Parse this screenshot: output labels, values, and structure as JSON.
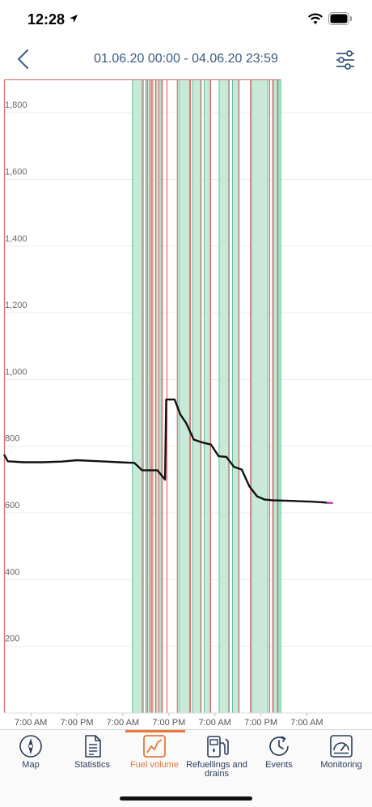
{
  "status_bar": {
    "time": "12:28"
  },
  "header": {
    "title": "01.06.20 00:00 - 04.06.20 23:59"
  },
  "chart_data": {
    "type": "line",
    "title": "",
    "xlabel": "",
    "ylabel": "",
    "ylim": [
      0,
      1900
    ],
    "y_ticks": [
      200,
      400,
      600,
      800,
      1000,
      1200,
      1400,
      1600,
      1800
    ],
    "y_tick_labels": [
      "200",
      "400",
      "600",
      "800",
      "1,000",
      "1,200",
      "1,400",
      "1,600",
      "1,800"
    ],
    "x_tick_labels": [
      "7:00 AM",
      "7:00 PM",
      "7:00 AM",
      "7:00 PM",
      "7:00 AM",
      "7:00 PM",
      "7:00 AM"
    ],
    "x_tick_hours": [
      7,
      19,
      31,
      43,
      55,
      67,
      79
    ],
    "xlim_hours": [
      0,
      96
    ],
    "series": [
      {
        "points": [
          [
            0,
            775
          ],
          [
            1,
            755
          ],
          [
            5,
            752
          ],
          [
            10,
            752
          ],
          [
            15,
            754
          ],
          [
            19,
            758
          ],
          [
            25,
            755
          ],
          [
            30,
            752
          ],
          [
            34,
            750
          ],
          [
            36,
            728
          ],
          [
            40,
            728
          ],
          [
            42,
            700
          ],
          [
            42.3,
            940
          ],
          [
            44.5,
            940
          ],
          [
            46,
            895
          ],
          [
            47.5,
            870
          ],
          [
            49.5,
            820
          ],
          [
            51.5,
            812
          ],
          [
            54,
            805
          ],
          [
            56,
            770
          ],
          [
            58,
            768
          ],
          [
            60,
            738
          ],
          [
            62,
            730
          ],
          [
            64,
            680
          ],
          [
            66,
            650
          ],
          [
            68,
            640
          ],
          [
            70,
            638
          ],
          [
            75,
            636
          ],
          [
            80,
            634
          ],
          [
            83,
            632
          ],
          [
            85,
            630
          ]
        ]
      }
    ],
    "shaded_intervals_hours": [
      [
        33.5,
        36
      ],
      [
        37,
        38.5
      ],
      [
        39.5,
        41
      ],
      [
        45.6,
        48.4
      ],
      [
        49.2,
        51.3
      ],
      [
        52.2,
        53.8
      ],
      [
        56.1,
        58.6
      ],
      [
        59.6,
        61.2
      ],
      [
        64.5,
        68.8
      ],
      [
        70.3,
        71.3
      ],
      [
        71.7,
        72.2
      ]
    ],
    "red_line_hours": [
      0.1,
      36.3,
      37.4,
      38.1,
      38.8,
      39.6,
      40.4,
      41.3,
      42.5,
      45.2,
      48.6,
      51.4,
      53.9,
      58.7,
      61.3,
      64.3,
      69.3,
      70.1,
      71.4
    ],
    "colors": {
      "line": "#111111",
      "shade": "#c8e9d8",
      "shade_edge": "#5bbf9a",
      "red_marker": "#e06a6a",
      "grid": "#ececec",
      "endpoint": "#c040c0"
    }
  },
  "tabs": [
    {
      "label": "Map",
      "icon": "compass-icon"
    },
    {
      "label": "Statistics",
      "icon": "document-icon"
    },
    {
      "label": "Fuel volume",
      "icon": "chart-icon"
    },
    {
      "label": "Refuellings and drains",
      "icon": "fuel-pump-icon"
    },
    {
      "label": "Events",
      "icon": "clock-icon"
    },
    {
      "label": "Monitoring",
      "icon": "gauge-icon"
    }
  ],
  "active_tab": "Fuel volume"
}
